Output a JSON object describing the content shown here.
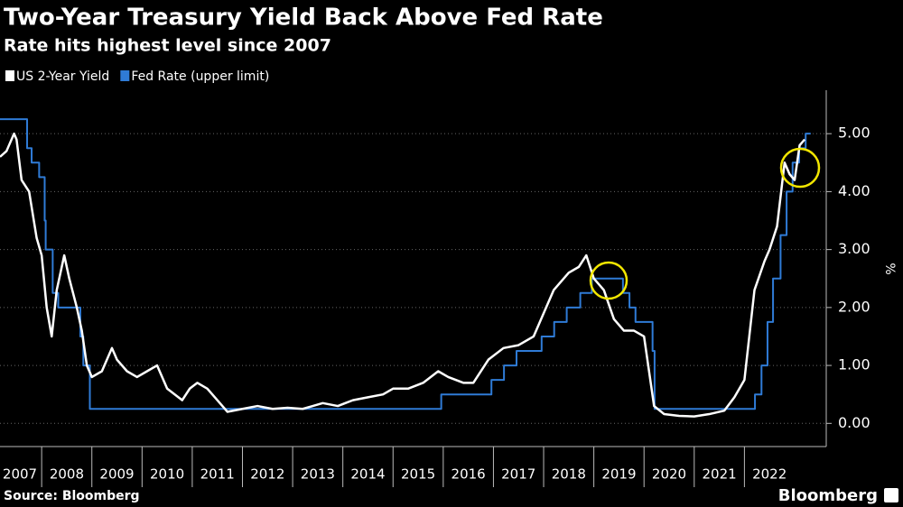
{
  "chart_data": {
    "type": "line",
    "title": "Two-Year Treasury Yield Back Above Fed Rate",
    "subtitle": "Rate hits highest level since 2007",
    "y_label": "%",
    "source": "Source: Bloomberg",
    "brand": "Bloomberg",
    "grid": true,
    "legend": "top-left",
    "xlim": [
      2007.17,
      2023.63
    ],
    "xticks": [
      2007,
      2008,
      2009,
      2010,
      2011,
      2012,
      2013,
      2014,
      2015,
      2016,
      2017,
      2018,
      2019,
      2020,
      2021,
      2022
    ],
    "ylim": [
      -0.4,
      5.75
    ],
    "yticks": [
      {
        "value": 0,
        "label": "0.00"
      },
      {
        "value": 1,
        "label": "1.00"
      },
      {
        "value": 2,
        "label": "2.00"
      },
      {
        "value": 3,
        "label": "3.00"
      },
      {
        "value": 4,
        "label": "4.00"
      },
      {
        "value": 5,
        "label": "5.00"
      }
    ],
    "series": [
      {
        "name": "US 2-Year Yield",
        "color": "#ffffff",
        "step": false,
        "x": [
          2007.17,
          2007.3,
          2007.45,
          2007.5,
          2007.6,
          2007.75,
          2007.9,
          2008.0,
          2008.1,
          2008.2,
          2008.3,
          2008.45,
          2008.55,
          2008.7,
          2008.8,
          2008.9,
          2009.0,
          2009.2,
          2009.4,
          2009.5,
          2009.7,
          2009.9,
          2010.1,
          2010.3,
          2010.5,
          2010.8,
          2010.95,
          2011.1,
          2011.3,
          2011.55,
          2011.7,
          2012.0,
          2012.3,
          2012.6,
          2012.9,
          2013.2,
          2013.4,
          2013.6,
          2013.9,
          2014.2,
          2014.5,
          2014.8,
          2015.0,
          2015.3,
          2015.6,
          2015.9,
          2016.1,
          2016.4,
          2016.6,
          2016.9,
          2017.2,
          2017.5,
          2017.8,
          2018.0,
          2018.2,
          2018.5,
          2018.7,
          2018.85,
          2019.0,
          2019.2,
          2019.4,
          2019.6,
          2019.8,
          2020.0,
          2020.2,
          2020.4,
          2020.7,
          2021.0,
          2021.3,
          2021.6,
          2021.8,
          2022.0,
          2022.2,
          2022.4,
          2022.5,
          2022.65,
          2022.8,
          2022.9,
          2023.0,
          2023.1,
          2023.2
        ],
        "values": [
          4.6,
          4.7,
          5.0,
          4.9,
          4.2,
          4.0,
          3.2,
          2.9,
          2.0,
          1.5,
          2.3,
          2.9,
          2.5,
          2.0,
          1.6,
          1.0,
          0.8,
          0.9,
          1.3,
          1.1,
          0.9,
          0.8,
          0.9,
          1.0,
          0.6,
          0.4,
          0.6,
          0.7,
          0.6,
          0.35,
          0.2,
          0.25,
          0.3,
          0.25,
          0.27,
          0.25,
          0.3,
          0.35,
          0.3,
          0.4,
          0.45,
          0.5,
          0.6,
          0.6,
          0.7,
          0.9,
          0.8,
          0.7,
          0.7,
          1.1,
          1.3,
          1.35,
          1.5,
          1.9,
          2.3,
          2.6,
          2.7,
          2.9,
          2.5,
          2.3,
          1.8,
          1.6,
          1.6,
          1.5,
          0.3,
          0.16,
          0.13,
          0.12,
          0.16,
          0.22,
          0.45,
          0.75,
          2.3,
          2.8,
          3.0,
          3.4,
          4.5,
          4.3,
          4.2,
          4.8,
          4.9
        ]
      },
      {
        "name": "Fed Rate (upper limit)",
        "color": "#2f7bd6",
        "step": true,
        "x": [
          2007.17,
          2007.71,
          2007.8,
          2007.95,
          2008.06,
          2008.08,
          2008.22,
          2008.33,
          2008.77,
          2008.83,
          2008.96,
          2015.96,
          2016.96,
          2017.21,
          2017.46,
          2017.96,
          2018.21,
          2018.46,
          2018.73,
          2018.96,
          2019.58,
          2019.71,
          2019.83,
          2020.17,
          2020.21,
          2022.21,
          2022.34,
          2022.46,
          2022.57,
          2022.72,
          2022.84,
          2022.96,
          2023.09,
          2023.22
        ],
        "values": [
          5.25,
          4.75,
          4.5,
          4.25,
          3.5,
          3.0,
          2.25,
          2.0,
          1.5,
          1.0,
          0.25,
          0.5,
          0.75,
          1.0,
          1.25,
          1.5,
          1.75,
          2.0,
          2.25,
          2.5,
          2.25,
          2.0,
          1.75,
          1.25,
          0.25,
          0.5,
          1.0,
          1.75,
          2.5,
          3.25,
          4.0,
          4.5,
          4.75,
          5.0
        ]
      }
    ]
  }
}
